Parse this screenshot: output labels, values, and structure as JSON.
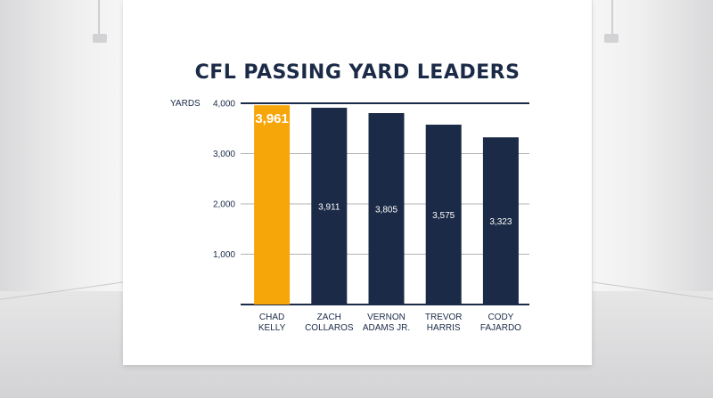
{
  "chart_data": {
    "type": "bar",
    "title": "CFL PASSING YARD LEADERS",
    "ylabel": "YARDS",
    "ylim": [
      0,
      4000
    ],
    "yticks": [
      1000,
      2000,
      3000,
      4000
    ],
    "ytick_labels": [
      "1,000",
      "2,000",
      "3,000",
      "4,000"
    ],
    "categories": [
      [
        "CHAD",
        "KELLY"
      ],
      [
        "ZACH",
        "COLLAROS"
      ],
      [
        "VERNON",
        "ADAMS JR."
      ],
      [
        "TREVOR",
        "HARRIS"
      ],
      [
        "CODY",
        "FAJARDO"
      ]
    ],
    "values": [
      3961,
      3911,
      3805,
      3575,
      3323
    ],
    "value_labels": [
      "3,961",
      "3,911",
      "3,805",
      "3,575",
      "3,323"
    ],
    "highlight_index": 0,
    "colors": {
      "highlight": "#f6a609",
      "default": "#1b2a47",
      "axis": "#1b2a47",
      "grid": "#9a9a9a"
    },
    "grid": true
  }
}
